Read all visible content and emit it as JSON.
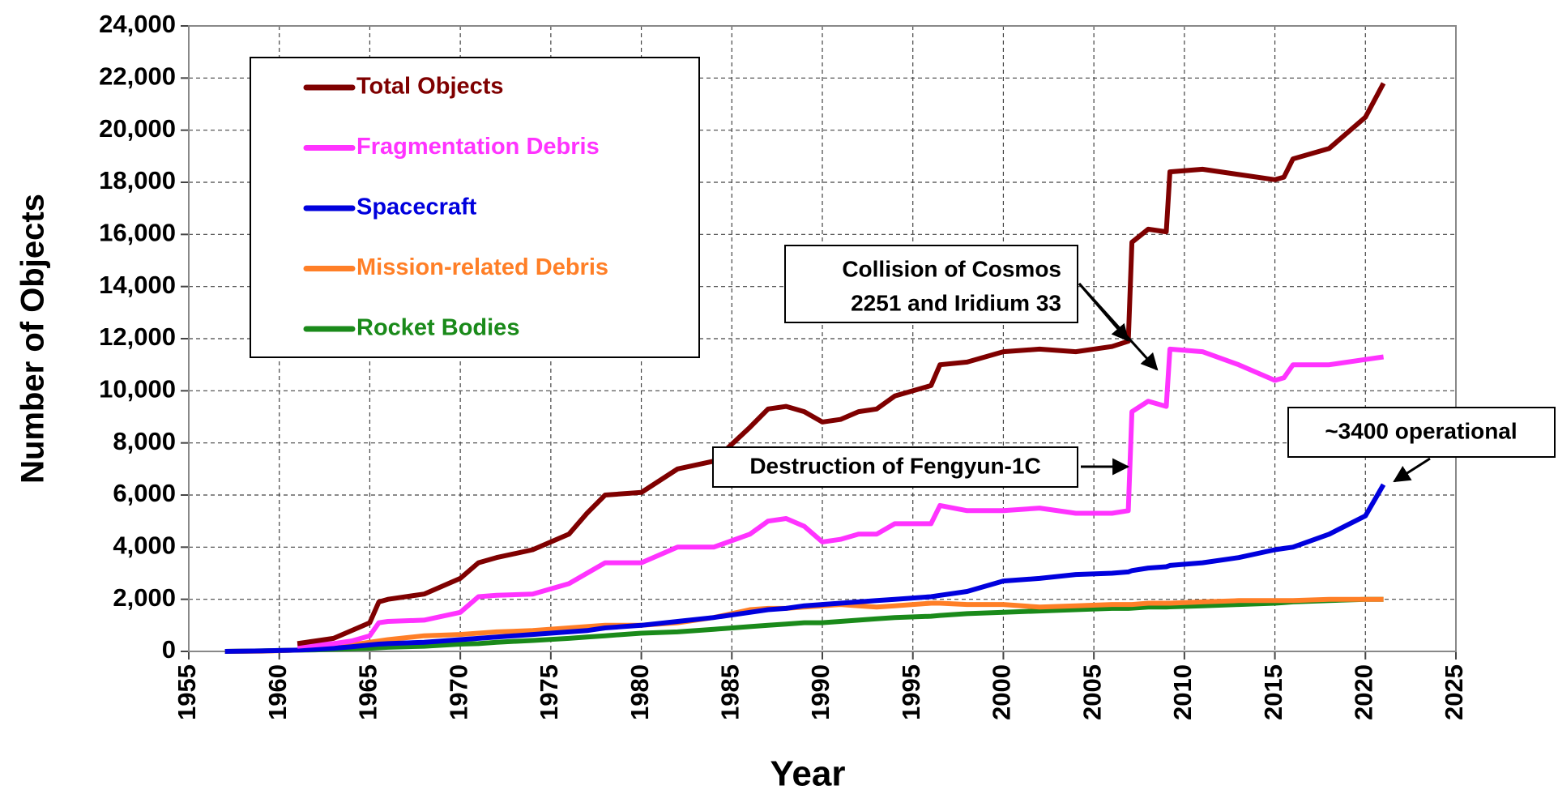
{
  "chart_data": {
    "type": "line",
    "xlabel": "Year",
    "ylabel": "Number of Objects",
    "x": [
      1957,
      1959,
      1961,
      1962,
      1963,
      1964,
      1965,
      1965.5,
      1966,
      1968,
      1970,
      1971,
      1972,
      1974,
      1976,
      1977,
      1978,
      1980,
      1982,
      1984,
      1986,
      1987,
      1988,
      1989,
      1990,
      1991,
      1992,
      1993,
      1994,
      1996,
      1996.5,
      1998,
      2000,
      2002,
      2004,
      2006,
      2006.9,
      2007.1,
      2008,
      2009,
      2009.2,
      2011,
      2013,
      2015,
      2015.5,
      2016,
      2018,
      2020,
      2021
    ],
    "series": [
      {
        "name": "Total Objects",
        "color": "#7f0000",
        "values": [
          null,
          null,
          300,
          400,
          500,
          800,
          1100,
          1900,
          2000,
          2200,
          2800,
          3400,
          3600,
          3900,
          4500,
          5300,
          6000,
          6100,
          7000,
          7300,
          8600,
          9300,
          9400,
          9200,
          8800,
          8900,
          9200,
          9300,
          9800,
          10200,
          11000,
          11100,
          11500,
          11600,
          11500,
          11700,
          11900,
          15700,
          16200,
          16100,
          18400,
          18500,
          18300,
          18100,
          18200,
          18900,
          19300,
          20500,
          21800
        ]
      },
      {
        "name": "Fragmentation Debris",
        "color": "#ff33ff",
        "values": [
          null,
          null,
          200,
          250,
          300,
          400,
          600,
          1100,
          1150,
          1200,
          1500,
          2100,
          2150,
          2200,
          2600,
          3000,
          3400,
          3400,
          4000,
          4000,
          4500,
          5000,
          5100,
          4800,
          4200,
          4300,
          4500,
          4500,
          4900,
          4900,
          5600,
          5400,
          5400,
          5500,
          5300,
          5300,
          5400,
          9200,
          9600,
          9400,
          11600,
          11500,
          11000,
          10400,
          10500,
          11000,
          11000,
          11200,
          11300
        ]
      },
      {
        "name": "Spacecraft",
        "color": "#0000dd",
        "values": [
          0,
          20,
          50,
          80,
          120,
          180,
          250,
          280,
          300,
          350,
          450,
          500,
          550,
          650,
          750,
          800,
          900,
          1000,
          1150,
          1300,
          1500,
          1600,
          1650,
          1750,
          1800,
          1850,
          1900,
          1950,
          2000,
          2100,
          2150,
          2300,
          2700,
          2800,
          2950,
          3000,
          3050,
          3100,
          3200,
          3250,
          3300,
          3400,
          3600,
          3900,
          3950,
          4000,
          4500,
          5200,
          6400
        ]
      },
      {
        "name": "Mission-related Debris",
        "color": "#ff7f27",
        "values": [
          0,
          10,
          50,
          100,
          150,
          250,
          350,
          400,
          450,
          600,
          650,
          700,
          750,
          800,
          900,
          950,
          1000,
          1000,
          1100,
          1300,
          1600,
          1650,
          1650,
          1700,
          1750,
          1800,
          1750,
          1700,
          1750,
          1850,
          1850,
          1800,
          1800,
          1700,
          1750,
          1800,
          1800,
          1800,
          1850,
          1850,
          1850,
          1900,
          1950,
          1950,
          1950,
          1950,
          2000,
          2000,
          2000
        ]
      },
      {
        "name": "Rocket Bodies",
        "color": "#1a8a1a",
        "values": [
          0,
          20,
          50,
          60,
          80,
          100,
          120,
          140,
          160,
          200,
          280,
          300,
          350,
          420,
          500,
          550,
          600,
          700,
          750,
          850,
          950,
          1000,
          1050,
          1100,
          1100,
          1150,
          1200,
          1250,
          1300,
          1350,
          1380,
          1450,
          1500,
          1550,
          1600,
          1650,
          1650,
          1660,
          1700,
          1700,
          1710,
          1750,
          1800,
          1850,
          1870,
          1900,
          1950,
          2000,
          2000
        ]
      }
    ],
    "xlim": [
      1955,
      2025
    ],
    "xticks": [
      1955,
      1960,
      1965,
      1970,
      1975,
      1980,
      1985,
      1990,
      1995,
      2000,
      2005,
      2010,
      2015,
      2020,
      2025
    ],
    "ylim": [
      0,
      24000
    ],
    "yticks": [
      0,
      {
        "value": 2000,
        "label": "2,000"
      },
      {
        "value": 4000,
        "label": "4,000"
      },
      {
        "value": 6000,
        "label": "6,000"
      },
      {
        "value": 8000,
        "label": "8,000"
      },
      {
        "value": 10000,
        "label": "10,000"
      },
      {
        "value": 12000,
        "label": "12,000"
      },
      {
        "value": 14000,
        "label": "14,000"
      },
      {
        "value": 16000,
        "label": "16,000"
      },
      {
        "value": 18000,
        "label": "18,000"
      },
      {
        "value": 20000,
        "label": "20,000"
      },
      {
        "value": 22000,
        "label": "22,000"
      },
      {
        "value": 24000,
        "label": "24,000"
      }
    ],
    "grid": true,
    "legend": "top-left",
    "annotations": [
      {
        "lines": [
          "Collision of Cosmos",
          "2251 and Iridium 33"
        ]
      },
      {
        "text": "Destruction of Fengyun-1C"
      },
      {
        "text": "~3400 operational",
        "color": "#0000dd"
      }
    ]
  }
}
